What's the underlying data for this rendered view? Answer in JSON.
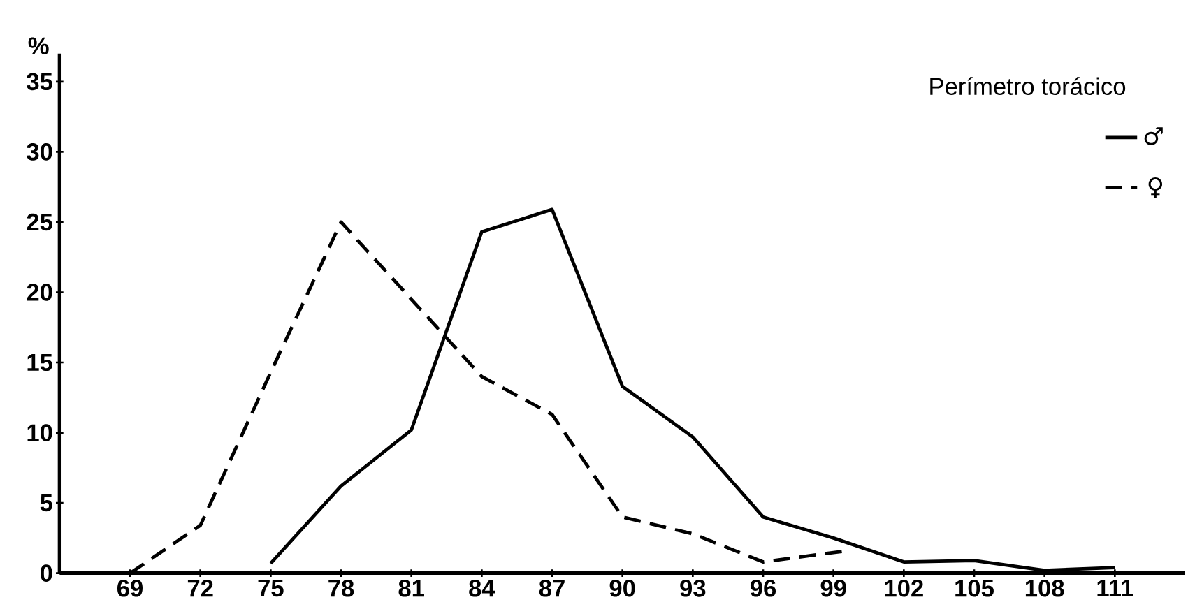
{
  "chart_data": {
    "type": "line",
    "ylabel": "%",
    "legend_title": "Perímetro torácico",
    "legend": "top right",
    "grid": false,
    "marker": "none",
    "xlim": [
      66,
      114
    ],
    "xticks": [
      69,
      72,
      75,
      78,
      81,
      84,
      87,
      90,
      93,
      96,
      99,
      102,
      105,
      108,
      111
    ],
    "ylim": [
      0,
      37
    ],
    "yticks": [
      0,
      5,
      10,
      15,
      20,
      25,
      30,
      35
    ],
    "series": [
      {
        "name": "♂",
        "color": "#000000",
        "line_style": "solid",
        "x": [
          75,
          78,
          81,
          84,
          87,
          90,
          93,
          96,
          99,
          102,
          105,
          108,
          111
        ],
        "values": [
          0.7,
          6.2,
          10.2,
          24.3,
          25.9,
          13.3,
          9.7,
          4,
          2.5,
          0.8,
          0.9,
          0.2,
          0.4
        ]
      },
      {
        "name": "♀",
        "color": "#000000",
        "line_style": "dashed",
        "x": [
          69,
          72,
          75,
          78,
          81,
          84,
          87,
          90,
          93,
          96,
          99.6
        ],
        "values": [
          0,
          3.4,
          14.3,
          25,
          19.5,
          14,
          11.3,
          4,
          2.8,
          0.8,
          1.6
        ]
      }
    ]
  }
}
